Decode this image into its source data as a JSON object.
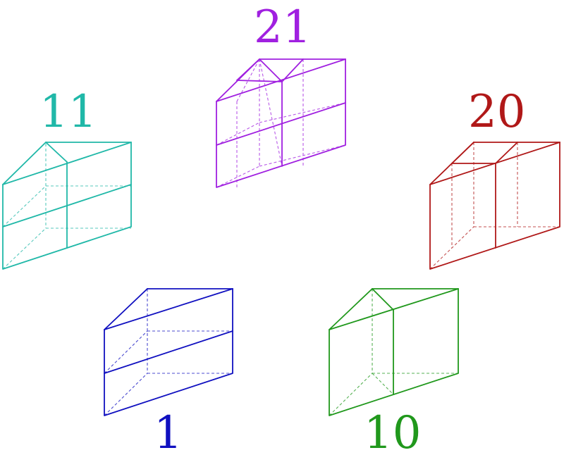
{
  "shapes": [
    {
      "label": "21",
      "color": "#a020e0"
    },
    {
      "label": "11",
      "color": "#20b8a8"
    },
    {
      "label": "20",
      "color": "#b01818"
    },
    {
      "label": "1",
      "color": "#1010c0"
    },
    {
      "label": "10",
      "color": "#20981c"
    }
  ]
}
